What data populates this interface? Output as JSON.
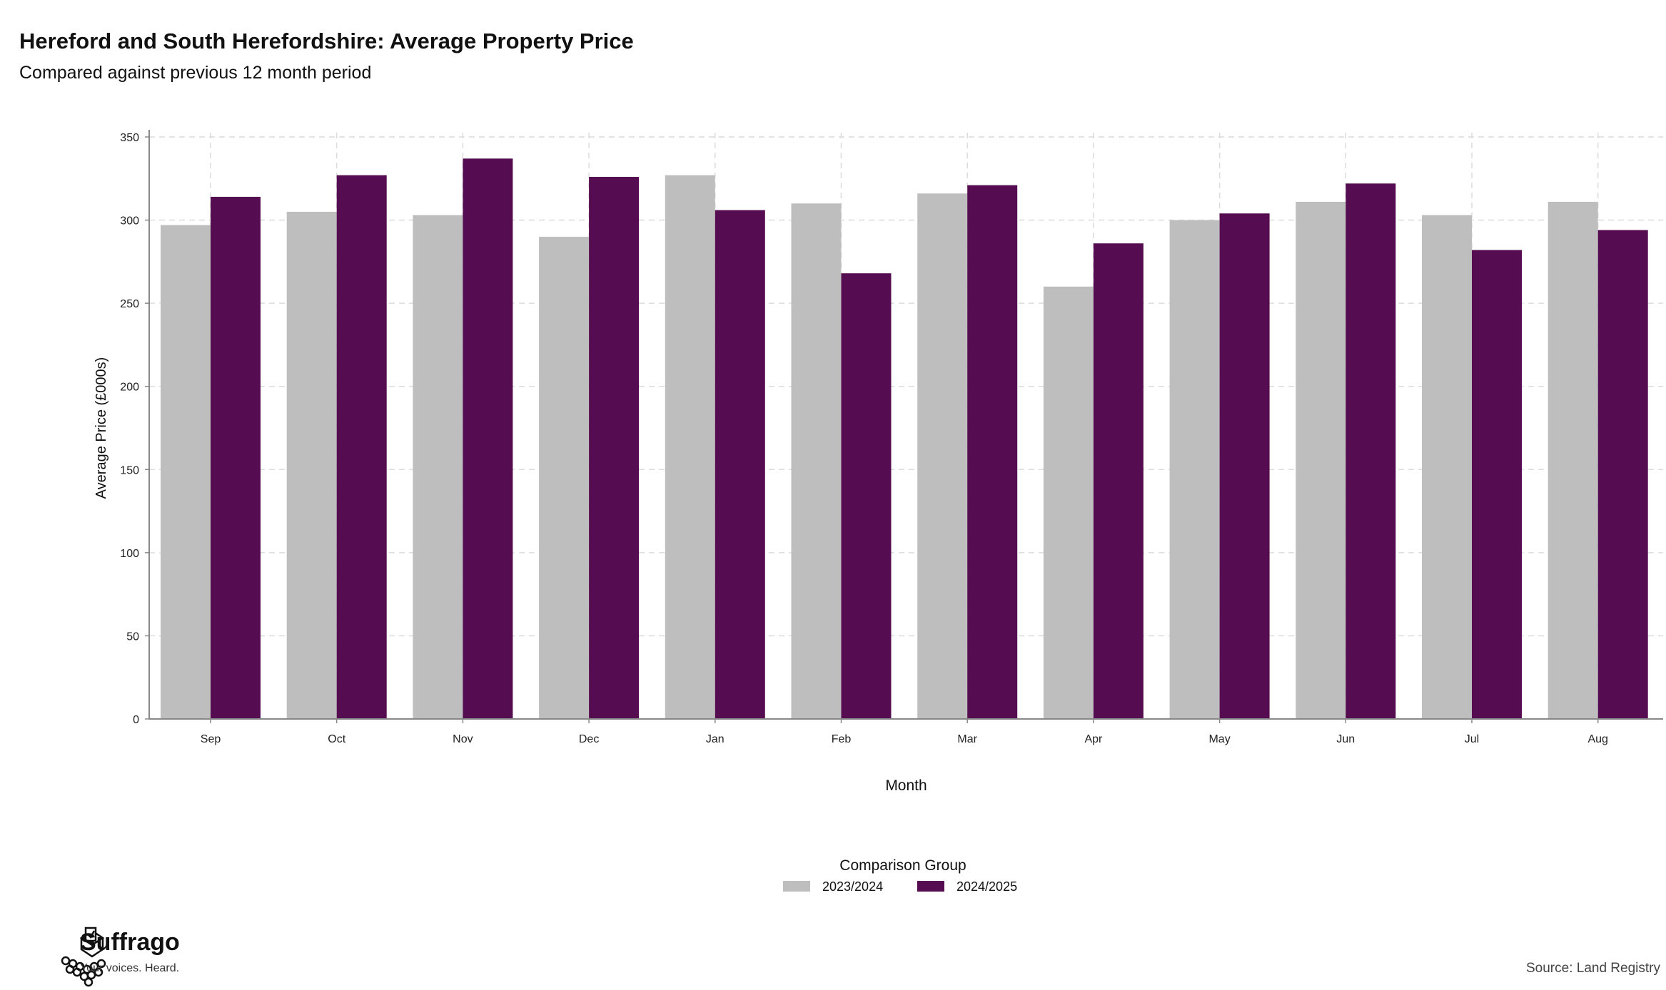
{
  "header": {
    "title": "Hereford and South Herefordshire: Average Property Price",
    "subtitle": "Compared against previous 12 month period"
  },
  "chart_data": {
    "type": "bar",
    "xlabel": "Month",
    "ylabel": "Average Price (£000s)",
    "ylim": [
      0,
      350
    ],
    "yticks": [
      0,
      50,
      100,
      150,
      200,
      250,
      300,
      350
    ],
    "grid": true,
    "legend_title": "Comparison Group",
    "legend_position": "bottom",
    "categories": [
      "Sep",
      "Oct",
      "Nov",
      "Dec",
      "Jan",
      "Feb",
      "Mar",
      "Apr",
      "May",
      "Jun",
      "Jul",
      "Aug"
    ],
    "series": [
      {
        "name": "2023/2024",
        "color": "#bebebe",
        "values": [
          297,
          305,
          303,
          290,
          327,
          310,
          316,
          260,
          300,
          311,
          303,
          311
        ]
      },
      {
        "name": "2024/2025",
        "color": "#560c50",
        "values": [
          314,
          327,
          337,
          326,
          306,
          268,
          321,
          286,
          304,
          322,
          282,
          294
        ]
      }
    ]
  },
  "branding": {
    "name": "Suffrago",
    "tagline": "Your voices. Heard.",
    "logo_icon": "ballot-box-icon"
  },
  "footer": {
    "source": "Source: Land Registry"
  }
}
